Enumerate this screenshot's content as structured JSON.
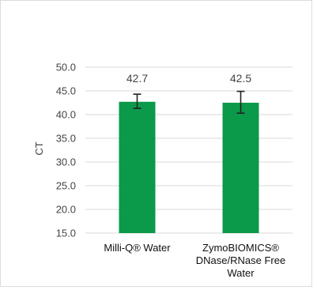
{
  "chart_data": {
    "type": "bar",
    "ylabel": "CT",
    "ylim": [
      15.0,
      50.0
    ],
    "y_ticks": [
      "50.0",
      "45.0",
      "40.0",
      "35.0",
      "30.0",
      "25.0",
      "20.0",
      "15.0"
    ],
    "grid": true,
    "categories": [
      [
        "Milli-Q® Water"
      ],
      [
        "ZymoBIOMICS®",
        "DNase/RNase Free",
        "Water"
      ]
    ],
    "values": [
      42.7,
      42.5
    ],
    "data_labels": [
      "42.7",
      "42.5"
    ],
    "error_low": [
      41.3,
      40.3
    ],
    "error_high": [
      44.3,
      44.9
    ],
    "bar_color": "#0a9a4a",
    "error_bar_color": "#222222",
    "gridline_color": "#d9d9d9"
  }
}
